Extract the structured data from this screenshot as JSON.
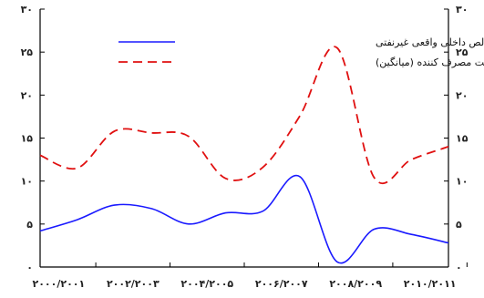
{
  "chart_data": {
    "type": "line",
    "x_categories": [
      "۲۰۰۰/۲۰۰۱",
      "۲۰۰۲/۲۰۰۳",
      "۲۰۰۴/۲۰۰۵",
      "۲۰۰۶/۲۰۰۷",
      "۲۰۰۸/۲۰۰۹",
      "۲۰۱۰/۲۰۱۱"
    ],
    "x_range": [
      2000,
      2011
    ],
    "ylim": [
      0,
      30
    ],
    "y_ticks": [
      0,
      5,
      10,
      15,
      20,
      25,
      30
    ],
    "y_tick_labels": [
      "۰",
      "۵",
      "۱۰",
      "۱۵",
      "۲۰",
      "۲۵",
      "۳۰"
    ],
    "grid": false,
    "legend_position": "top-center",
    "series": [
      {
        "name": "تولید ناخالص داخلی واقعی غیرنفتی",
        "color": "#1a1aff",
        "style": "solid",
        "x": [
          2000,
          2001,
          2002,
          2003,
          2004,
          2005,
          2006,
          2007,
          2008,
          2009,
          2010,
          2011
        ],
        "y": [
          4.2,
          5.5,
          7.2,
          6.8,
          5.0,
          6.3,
          6.5,
          10.5,
          0.6,
          4.4,
          3.8,
          2.8
        ]
      },
      {
        "name": "تورم شاخص قیمت مصرف کننده (میانگین)",
        "color": "#e01010",
        "style": "dashed",
        "x": [
          2000,
          2001,
          2002,
          2003,
          2004,
          2005,
          2006,
          2007,
          2008,
          2009,
          2010,
          2011
        ],
        "y": [
          13.0,
          11.5,
          15.8,
          15.6,
          15.2,
          10.3,
          11.6,
          17.6,
          25.5,
          10.4,
          12.5,
          14.0
        ]
      }
    ]
  }
}
